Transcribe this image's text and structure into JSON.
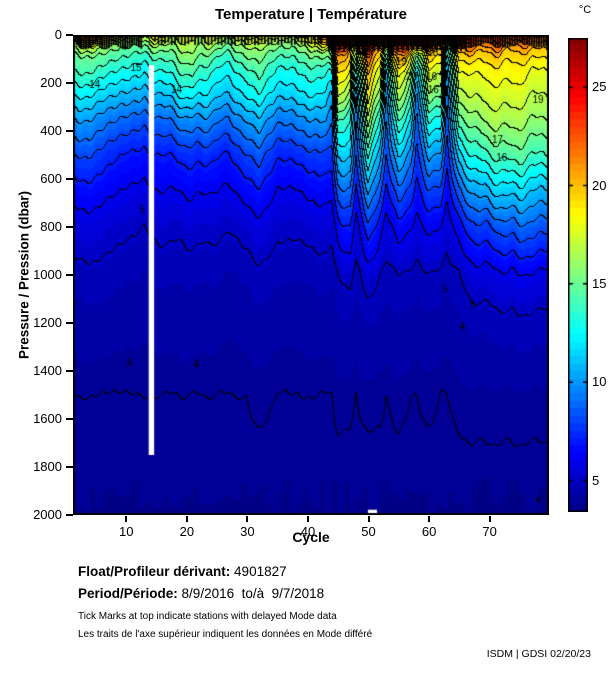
{
  "title": "Temperature | Température",
  "axes": {
    "y_label": "Pressure / Pression (dbar)",
    "x_label": "Cycle",
    "y_ticks": [
      0,
      200,
      400,
      600,
      800,
      1000,
      1200,
      1400,
      1600,
      1800,
      2000
    ],
    "x_ticks": [
      10,
      20,
      30,
      40,
      50,
      60,
      70
    ],
    "colorbar": {
      "unit": "°C",
      "ticks": [
        5,
        10,
        15,
        20,
        25
      ],
      "vmin": 3.4,
      "vmax": 27.5
    }
  },
  "footer": {
    "float_label": "Float/Profileur dérivant:",
    "float_value": "4901827",
    "period_label": "Period/Période:",
    "period_value": "8/9/2016  to/à  9/7/2018",
    "note_en": "Tick Marks at top indicate stations with delayed Mode data",
    "note_fr": "Les traits de l'axe supérieur indiquent les données en Mode différé",
    "credit": "ISDM | GDSI 02/20/23"
  },
  "chart_data": {
    "type": "heatmap",
    "x_name": "cycle",
    "y_name": "pressure_dbar",
    "z_name": "temperature_C",
    "x_range": [
      1.2,
      79.8
    ],
    "y_range": [
      0,
      2000
    ],
    "colormap": "jet",
    "contour_levels": "1 °C intervals from 4 to 27",
    "grid": false,
    "cycles": [
      1,
      4,
      7,
      10,
      12,
      13,
      14,
      16,
      19,
      21,
      24,
      27,
      30,
      32,
      35,
      38,
      41,
      43,
      44,
      45,
      47,
      48,
      50,
      52,
      53,
      55,
      57,
      58,
      60,
      62,
      63,
      65,
      67,
      70,
      73,
      75,
      77,
      79
    ],
    "pressures": [
      0,
      40,
      80,
      150,
      250,
      350,
      500,
      650,
      800,
      1000,
      1200,
      1500,
      1800,
      2000
    ],
    "temperatures": [
      [
        23,
        17,
        15,
        14,
        12,
        10,
        8,
        6.5,
        5.5,
        4.8,
        4.3,
        4.0,
        3.95,
        3.85
      ],
      [
        22,
        17,
        15,
        14,
        12,
        10,
        8,
        6.5,
        5.5,
        4.8,
        4.3,
        4.0,
        3.95,
        3.85
      ],
      [
        21,
        16.5,
        15,
        13.5,
        11.5,
        9.5,
        7.5,
        6.2,
        5.3,
        4.7,
        4.3,
        4.0,
        3.95,
        3.85
      ],
      [
        19,
        16,
        14.5,
        13,
        11,
        9,
        7,
        6,
        5.2,
        4.6,
        4.25,
        4.0,
        3.95,
        3.85
      ],
      [
        18,
        15.5,
        14,
        12.5,
        10.5,
        8.5,
        6.8,
        5.8,
        5.1,
        4.6,
        4.25,
        4.0,
        3.95,
        3.85
      ],
      [
        17.5,
        15,
        13.5,
        12,
        10,
        8.2,
        6.6,
        5.7,
        5.0,
        4.5,
        4.2,
        4.0,
        3.9,
        3.85
      ],
      [
        18,
        15.5,
        14,
        12.5,
        10.5,
        8.5,
        6.8,
        5.8,
        5.1,
        4.6,
        4.25,
        4.0,
        3.95,
        3.85
      ],
      [
        18.5,
        16,
        14.5,
        13,
        11,
        9,
        7,
        6,
        5.2,
        4.6,
        4.25,
        4.0,
        3.95,
        3.85
      ],
      [
        18,
        16.5,
        15.5,
        14,
        12,
        9.5,
        7.2,
        6,
        5.2,
        4.6,
        4.3,
        4.0,
        3.95,
        3.85
      ],
      [
        17.5,
        16.5,
        16,
        14.5,
        12.5,
        10,
        7.5,
        6.2,
        5.3,
        4.6,
        4.3,
        4.0,
        3.95,
        3.85
      ],
      [
        18,
        16,
        14.5,
        13,
        11.5,
        9.5,
        7.2,
        6,
        5.2,
        4.6,
        4.25,
        4.0,
        3.95,
        3.85
      ],
      [
        17.5,
        15.5,
        14,
        12.5,
        11,
        9,
        7,
        5.9,
        5.1,
        4.5,
        4.2,
        4.0,
        3.9,
        3.85
      ],
      [
        18,
        16,
        15,
        13.5,
        12,
        10,
        7.8,
        6.3,
        5.3,
        4.6,
        4.25,
        4.0,
        3.95,
        3.85
      ],
      [
        18.5,
        16.5,
        15.5,
        14.5,
        13,
        11,
        8.5,
        6.8,
        5.6,
        4.8,
        4.35,
        4.05,
        3.95,
        3.85
      ],
      [
        18,
        16,
        14.5,
        13,
        11.5,
        9.5,
        7.3,
        6,
        5.2,
        4.6,
        4.25,
        4.0,
        3.95,
        3.85
      ],
      [
        18.5,
        16,
        14.5,
        13,
        11.5,
        9.5,
        7.3,
        6,
        5.2,
        4.6,
        4.25,
        4.0,
        3.95,
        3.85
      ],
      [
        19,
        16.5,
        15,
        13.5,
        12,
        10,
        7.6,
        6.2,
        5.3,
        4.6,
        4.3,
        4.0,
        3.95,
        3.85
      ],
      [
        24,
        20,
        16,
        13.5,
        12,
        10.5,
        8,
        6.5,
        5.4,
        4.7,
        4.3,
        4.0,
        3.95,
        3.85
      ],
      [
        26,
        22,
        17,
        13,
        10.5,
        9,
        7.5,
        6.3,
        5.3,
        4.6,
        4.3,
        4.0,
        3.95,
        3.85
      ],
      [
        27,
        24,
        21,
        19,
        17,
        14,
        11,
        8.5,
        6.5,
        5.0,
        4.4,
        4.05,
        3.95,
        3.85
      ],
      [
        26,
        23,
        20,
        18.5,
        16,
        13.5,
        11.5,
        9,
        7,
        5.2,
        4.5,
        4.05,
        3.95,
        3.85
      ],
      [
        26,
        21,
        16,
        12.5,
        10,
        9,
        8,
        6.8,
        5.6,
        4.8,
        4.35,
        4.0,
        3.95,
        3.85
      ],
      [
        27,
        25,
        22,
        20,
        18.5,
        16.5,
        13,
        10,
        7.5,
        5.4,
        4.55,
        4.05,
        3.95,
        3.85
      ],
      [
        26,
        23,
        19.5,
        17.5,
        15.5,
        13,
        10.5,
        8.5,
        6.5,
        5.0,
        4.45,
        4.05,
        3.95,
        3.85
      ],
      [
        25.5,
        20,
        15.5,
        12,
        10,
        9,
        8,
        6.8,
        5.6,
        4.8,
        4.35,
        4.0,
        3.95,
        3.85
      ],
      [
        26,
        24,
        21,
        18.5,
        16.5,
        14,
        11,
        8.5,
        6.5,
        5.0,
        4.45,
        4.05,
        3.95,
        3.85
      ],
      [
        25.5,
        22,
        18.5,
        16,
        14,
        12,
        9.5,
        7.5,
        6,
        4.8,
        4.35,
        4.0,
        3.95,
        3.85
      ],
      [
        25,
        19,
        14.5,
        11.5,
        9.5,
        8.5,
        7.5,
        6.5,
        5.5,
        4.7,
        4.3,
        4.0,
        3.95,
        3.85
      ],
      [
        26,
        23,
        20,
        18,
        16,
        13.5,
        10.5,
        8,
        6.2,
        4.9,
        4.4,
        4.05,
        3.95,
        3.85
      ],
      [
        25.5,
        22.5,
        19.5,
        17.5,
        15.5,
        13,
        10,
        7.8,
        6,
        4.8,
        4.35,
        4.0,
        3.95,
        3.85
      ],
      [
        25,
        18,
        13.5,
        11,
        9.5,
        8.5,
        7.5,
        6.4,
        5.4,
        4.7,
        4.3,
        4.0,
        3.95,
        3.85
      ],
      [
        25,
        22,
        19.5,
        18,
        16.5,
        14.5,
        11.5,
        8.8,
        6.6,
        5.0,
        4.45,
        4.05,
        3.95,
        3.85
      ],
      [
        24,
        21.5,
        19.5,
        18,
        17,
        15.5,
        13,
        10,
        7.5,
        5.4,
        4.6,
        4.1,
        3.95,
        3.85
      ],
      [
        24,
        22,
        20,
        18.5,
        17.5,
        16.5,
        14,
        11,
        8,
        5.6,
        4.65,
        4.1,
        3.95,
        3.85
      ],
      [
        23.5,
        21.5,
        19.5,
        18.5,
        17.5,
        16.5,
        14.5,
        11.5,
        8.5,
        5.8,
        4.75,
        4.1,
        3.95,
        3.85
      ],
      [
        23,
        21,
        19.5,
        18.5,
        17.5,
        16.5,
        14.5,
        11.5,
        8.8,
        6.0,
        4.8,
        4.1,
        3.95,
        3.85
      ],
      [
        23,
        21,
        19.5,
        18,
        17,
        16,
        14,
        11,
        8.5,
        5.8,
        4.75,
        4.1,
        3.95,
        3.85
      ],
      [
        23,
        21,
        19.5,
        18,
        17,
        16,
        14,
        11,
        8.5,
        5.8,
        4.75,
        4.1,
        3.95,
        3.85
      ]
    ],
    "missing_data_gap": {
      "cycle_from": 13.7,
      "cycle_to": 14.6,
      "p_from": 125,
      "p_to": 1750
    },
    "missing_bottom_gap": {
      "cycle_from": 49.9,
      "cycle_to": 51.4,
      "p_from": 1978,
      "p_to": 2000
    },
    "contour_labels": [
      {
        "c": 4.8,
        "p": 208,
        "t": "14"
      },
      {
        "c": 11.6,
        "p": 137,
        "t": "15"
      },
      {
        "c": 18.3,
        "p": 229,
        "t": "14"
      },
      {
        "c": 12.6,
        "p": 729,
        "t": "5"
      },
      {
        "c": 10.5,
        "p": 1366,
        "t": "4"
      },
      {
        "c": 21.6,
        "p": 1375,
        "t": "4"
      },
      {
        "c": 51.0,
        "p": 40,
        "t": "23"
      },
      {
        "c": 55.4,
        "p": 112,
        "t": "19"
      },
      {
        "c": 57.1,
        "p": 175,
        "t": "20"
      },
      {
        "c": 60.6,
        "p": 75,
        "t": "18"
      },
      {
        "c": 60.4,
        "p": 175,
        "t": "16"
      },
      {
        "c": 60.7,
        "p": 229,
        "t": "16"
      },
      {
        "c": 71.3,
        "p": 437,
        "t": "17"
      },
      {
        "c": 72.0,
        "p": 512,
        "t": "16"
      },
      {
        "c": 62.6,
        "p": 1062,
        "t": "5"
      },
      {
        "c": 67.2,
        "p": 1125,
        "t": "5"
      },
      {
        "c": 65.5,
        "p": 1216,
        "t": "4"
      },
      {
        "c": 78.0,
        "p": 270,
        "t": "19"
      },
      {
        "c": 78.0,
        "p": 1940,
        "t": "4"
      }
    ],
    "top_tick_ranges": [
      {
        "from": 1.3,
        "to": 12.6,
        "step": 0.38,
        "h": 13
      },
      {
        "from": 14.6,
        "to": 42.6,
        "step": 0.55,
        "h": 9
      },
      {
        "from": 43.0,
        "to": 66.0,
        "step": 0.28,
        "h": 15
      },
      {
        "from": 66.4,
        "to": 79.4,
        "step": 0.4,
        "h": 11
      }
    ]
  }
}
